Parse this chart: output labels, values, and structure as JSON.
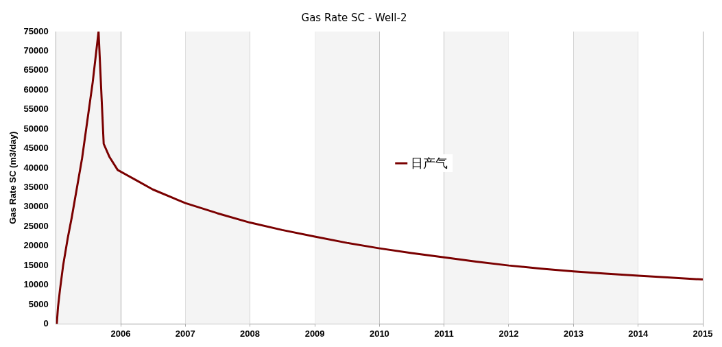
{
  "chart_data": {
    "type": "line",
    "title": "Gas Rate SC - Well-2",
    "ylabel": "Gas Rate SC (m3/day)",
    "xlim": [
      "2005-01-01",
      "2015-01-01"
    ],
    "xticks": [
      "2006",
      "2007",
      "2008",
      "2009",
      "2010",
      "2011",
      "2012",
      "2013",
      "2014",
      "2015"
    ],
    "ylim": [
      0,
      75000
    ],
    "yticks": [
      0,
      5000,
      10000,
      15000,
      20000,
      25000,
      30000,
      35000,
      40000,
      45000,
      50000,
      55000,
      60000,
      65000,
      70000,
      75000
    ],
    "grid": "x",
    "legend": "right",
    "bands": [
      {
        "axis": "x",
        "from": "2005-01-01",
        "to": "2006-01-01",
        "color": "#f4f4f4"
      },
      {
        "axis": "x",
        "from": "2007-01-01",
        "to": "2008-01-01",
        "color": "#f4f4f4"
      },
      {
        "axis": "x",
        "from": "2009-01-01",
        "to": "2010-01-01",
        "color": "#f4f4f4"
      },
      {
        "axis": "x",
        "from": "2011-01-01",
        "to": "2012-01-01",
        "color": "#f4f4f4"
      },
      {
        "axis": "x",
        "from": "2013-01-01",
        "to": "2014-01-01",
        "color": "#f4f4f4"
      }
    ],
    "series": [
      {
        "name": "日产气",
        "color": "#7a0000",
        "x": [
          "2005-01-05",
          "2005-01-12",
          "2005-01-23",
          "2005-02-10",
          "2005-03-08",
          "2005-03-31",
          "2005-05-28",
          "2005-07-27",
          "2005-08-29",
          "2005-09-27",
          "2005-10-30",
          "2005-12-15",
          "2006-04-01",
          "2006-07-01",
          "2007-01-01",
          "2007-07-01",
          "2008-01-01",
          "2008-07-01",
          "2009-01-01",
          "2009-07-01",
          "2010-01-01",
          "2010-07-01",
          "2011-01-01",
          "2011-07-01",
          "2012-01-01",
          "2012-07-01",
          "2013-01-01",
          "2013-07-01",
          "2014-01-01",
          "2014-07-01",
          "2015-01-01"
        ],
        "values": [
          0,
          4300,
          8700,
          15000,
          22000,
          27400,
          42500,
          62000,
          75000,
          46200,
          42800,
          39500,
          36800,
          34500,
          31000,
          28400,
          26000,
          24100,
          22400,
          20800,
          19400,
          18200,
          17100,
          16000,
          15000,
          14200,
          13500,
          12900,
          12400,
          11900,
          11400
        ]
      }
    ]
  }
}
